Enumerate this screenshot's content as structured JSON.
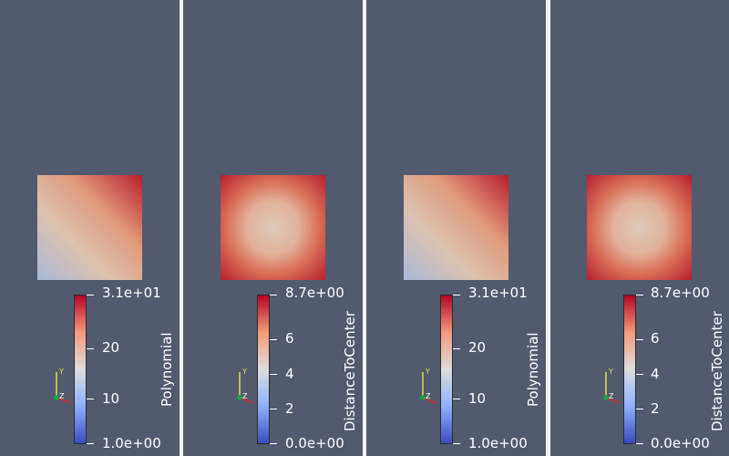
{
  "views": [
    {
      "scalar": "Polynomial",
      "colorbar": {
        "max_label": "3.1e+01",
        "min_label": "1.0e+00",
        "ticks": [
          "20",
          "10"
        ]
      },
      "shading": "diagonal",
      "axes": {
        "x": "X",
        "y": "Y",
        "z": "Z"
      }
    },
    {
      "scalar": "DistanceToCenter",
      "colorbar": {
        "max_label": "8.7e+00",
        "min_label": "0.0e+00",
        "ticks": [
          "6",
          "4",
          "2"
        ]
      },
      "shading": "radial",
      "axes": {
        "x": "X",
        "y": "Y",
        "z": "Z"
      }
    },
    {
      "scalar": "Polynomial",
      "colorbar": {
        "max_label": "3.1e+01",
        "min_label": "1.0e+00",
        "ticks": [
          "20",
          "10"
        ]
      },
      "shading": "diagonal",
      "axes": {
        "x": "X",
        "y": "Y",
        "z": "Z"
      }
    },
    {
      "scalar": "DistanceToCenter",
      "colorbar": {
        "max_label": "8.7e+00",
        "min_label": "0.0e+00",
        "ticks": [
          "6",
          "4",
          "2"
        ]
      },
      "shading": "radial",
      "axes": {
        "x": "X",
        "y": "Y",
        "z": "Z"
      }
    }
  ],
  "colors": {
    "background": "#525a6e",
    "cool": "#3b4cc0",
    "warm": "#b40426",
    "mid": "#dddddd",
    "axis_x": "#d03030",
    "axis_y": "#e0e040",
    "axis_z": "#20a040"
  }
}
